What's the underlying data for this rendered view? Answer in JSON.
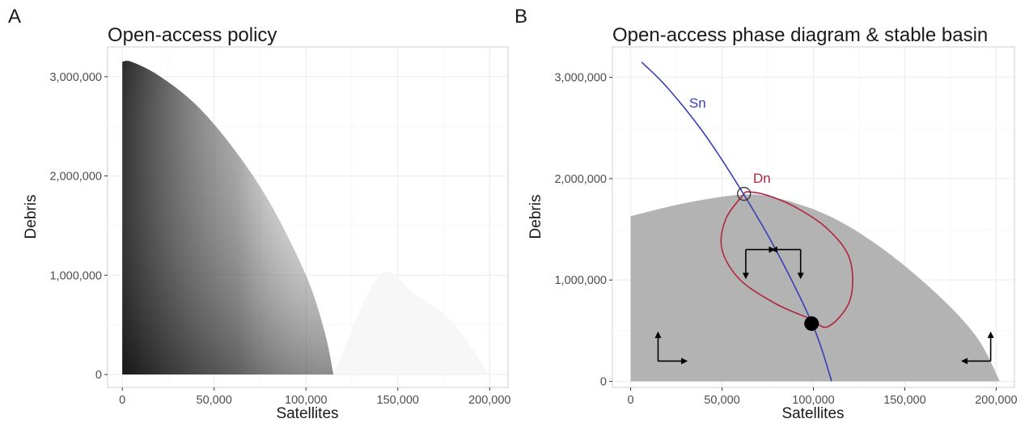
{
  "panel_labels": [
    "A",
    "B"
  ],
  "chart_data": [
    {
      "type": "heatmap",
      "title": "Open-access policy",
      "xlabel": "Satellites",
      "ylabel": "Debris",
      "xlim": [
        -8000,
        210000
      ],
      "ylim": [
        -130000,
        3300000
      ],
      "x_ticks": [
        0,
        50000,
        100000,
        150000,
        200000
      ],
      "x_tick_labels": [
        "0",
        "50,000",
        "100,000",
        "150,000",
        "200,000"
      ],
      "y_ticks": [
        0,
        1000000,
        2000000,
        3000000
      ],
      "y_tick_labels": [
        "0",
        "1,000,000",
        "2,000,000",
        "3,000,000"
      ],
      "grid": true,
      "colors": {
        "panel_bg": "#ffffff",
        "grid": "#ebebeb",
        "fill_dark": "#202020",
        "fill_light": "#ffffff"
      },
      "region_boundary": [
        [
          0,
          3150000
        ],
        [
          5000,
          3150000
        ],
        [
          20000,
          3010000
        ],
        [
          40000,
          2720000
        ],
        [
          60000,
          2290000
        ],
        [
          80000,
          1740000
        ],
        [
          100000,
          1000000
        ],
        [
          110000,
          440000
        ],
        [
          115000,
          0
        ]
      ],
      "faint_region_boundary": [
        [
          115000,
          0
        ],
        [
          140000,
          1000000
        ],
        [
          160000,
          800000
        ],
        [
          180000,
          520000
        ],
        [
          200000,
          0
        ]
      ]
    },
    {
      "type": "line",
      "title": "Open-access phase diagram & stable basin",
      "xlabel": "Satellites",
      "ylabel": "Debris",
      "xlim": [
        -10000,
        210000
      ],
      "ylim": [
        -60000,
        3300000
      ],
      "x_ticks": [
        0,
        50000,
        100000,
        150000,
        200000
      ],
      "x_tick_labels": [
        "0",
        "50,000",
        "100,000",
        "150,000",
        "200,000"
      ],
      "y_ticks": [
        0,
        1000000,
        2000000,
        3000000
      ],
      "y_tick_labels": [
        "0",
        "1,000,000",
        "2,000,000",
        "3,000,000"
      ],
      "grid": true,
      "colors": {
        "basin": "#b3b3b3",
        "Sn": "#3a3fb5",
        "Dn": "#b0253f",
        "grid": "#ebebeb",
        "point": "#000000"
      },
      "stable_basin_boundary": [
        [
          0,
          1630000
        ],
        [
          30000,
          1760000
        ],
        [
          60000,
          1840000
        ],
        [
          80000,
          1810000
        ],
        [
          110000,
          1620000
        ],
        [
          140000,
          1280000
        ],
        [
          170000,
          820000
        ],
        [
          190000,
          420000
        ],
        [
          202000,
          0
        ]
      ],
      "series": [
        {
          "name": "Sn",
          "x": [
            6000,
            20000,
            40000,
            60000,
            80000,
            100000,
            110000
          ],
          "y": [
            3150000,
            2900000,
            2450000,
            1900000,
            1280000,
            540000,
            0
          ]
        },
        {
          "name": "Dn",
          "x": [
            62000,
            52000,
            50000,
            60000,
            80000,
            98000,
            108000,
            120000,
            120000,
            108000,
            90000,
            74000,
            64000
          ],
          "y": [
            1850000,
            1600000,
            1300000,
            1000000,
            760000,
            620000,
            540000,
            800000,
            1200000,
            1500000,
            1720000,
            1840000,
            1870000
          ]
        }
      ],
      "unstable_steady_state": [
        62000,
        1850000
      ],
      "stable_steady_state": [
        99000,
        570000
      ],
      "phase_arrows": [
        {
          "x": 63000,
          "y": 1300000,
          "dx": "right",
          "dy": "down"
        },
        {
          "x": 93000,
          "y": 1300000,
          "dx": "left",
          "dy": "down"
        },
        {
          "x": 15000,
          "y": 200000,
          "dx": "right",
          "dy": "up"
        },
        {
          "x": 197000,
          "y": 200000,
          "dx": "left",
          "dy": "up"
        }
      ]
    }
  ]
}
